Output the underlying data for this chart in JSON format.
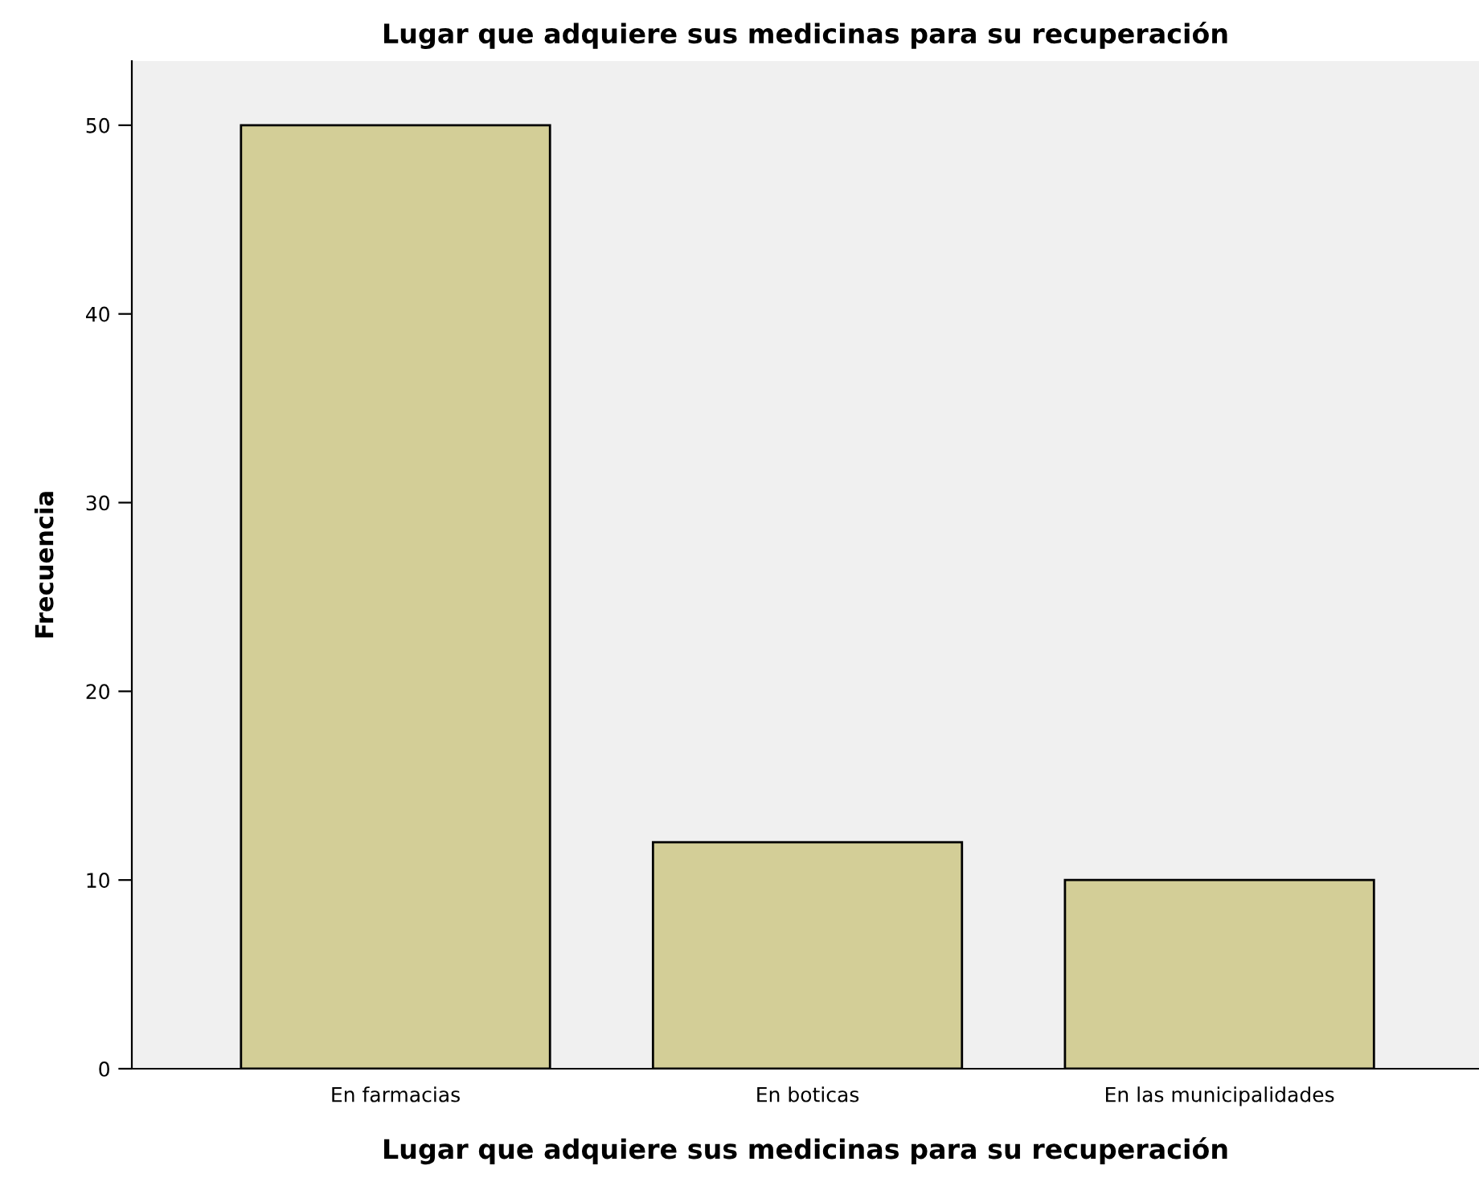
{
  "chart_data": {
    "type": "bar",
    "title": "Lugar que adquiere sus medicinas para su recuperación",
    "xlabel": "Lugar que adquiere sus medicinas para su recuperación",
    "ylabel": "Frecuencia",
    "categories": [
      "En farmacias",
      "En boticas",
      "En las municipalidades"
    ],
    "values": [
      50,
      12,
      10
    ],
    "color": "#d3ce97",
    "ylim": [
      0,
      53.4
    ],
    "yticks": [
      0,
      10,
      20,
      30,
      40,
      50
    ],
    "grid": false,
    "legend": false
  }
}
